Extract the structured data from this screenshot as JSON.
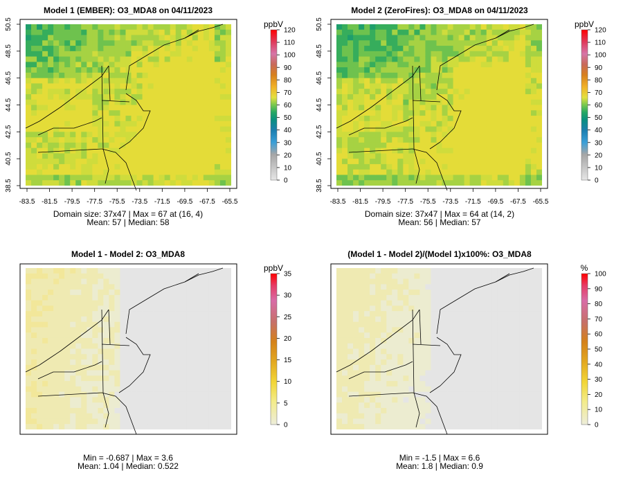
{
  "chart_data": [
    {
      "type": "heatmap",
      "title": "Model 1 (EMBER): O3_MDA8 on 04/11/2023",
      "x_ticks": [
        "-83.5",
        "-81.5",
        "-79.5",
        "-77.5",
        "-75.5",
        "-73.5",
        "-71.5",
        "-69.5",
        "-67.5",
        "-65.5"
      ],
      "y_ticks": [
        "38.5",
        "40.5",
        "42.5",
        "44.5",
        "46.5",
        "48.5",
        "50.5"
      ],
      "xlim": [
        -83.5,
        -65.5
      ],
      "ylim": [
        38.5,
        50.5
      ],
      "colorbar": {
        "unit": "ppbV",
        "ticks": [
          "0",
          "10",
          "20",
          "30",
          "40",
          "50",
          "60",
          "70",
          "80",
          "90",
          "100",
          "110",
          "120"
        ],
        "range": [
          0,
          120
        ]
      },
      "stats": {
        "line1": "Domain size: 37x47 | Max = 67 at (16, 4)",
        "line2": "Mean: 57 |  Median: 58"
      },
      "grid": {
        "cols": 37,
        "rows": 47,
        "max": 67,
        "mean": 57,
        "median": 58
      }
    },
    {
      "type": "heatmap",
      "title": "Model 2 (ZeroFires): O3_MDA8 on 04/11/2023",
      "x_ticks": [
        "-83.5",
        "-81.5",
        "-79.5",
        "-77.5",
        "-75.5",
        "-73.5",
        "-71.5",
        "-69.5",
        "-67.5",
        "-65.5"
      ],
      "y_ticks": [
        "38.5",
        "40.5",
        "42.5",
        "44.5",
        "46.5",
        "48.5",
        "50.5"
      ],
      "xlim": [
        -83.5,
        -65.5
      ],
      "ylim": [
        38.5,
        50.5
      ],
      "colorbar": {
        "unit": "ppbV",
        "ticks": [
          "0",
          "10",
          "20",
          "30",
          "40",
          "50",
          "60",
          "70",
          "80",
          "90",
          "100",
          "110",
          "120"
        ],
        "range": [
          0,
          120
        ]
      },
      "stats": {
        "line1": "Domain size: 37x47 | Max = 64 at (14, 2)",
        "line2": "Mean: 56 |  Median: 57"
      },
      "grid": {
        "cols": 37,
        "rows": 47,
        "max": 64,
        "mean": 56,
        "median": 57
      }
    },
    {
      "type": "heatmap",
      "title": "Model 1 - Model 2: O3_MDA8",
      "colorbar": {
        "unit": "ppbV",
        "ticks": [
          "0",
          "5",
          "10",
          "15",
          "20",
          "25",
          "30",
          "35"
        ],
        "range": [
          0,
          35
        ]
      },
      "stats": {
        "line1": "Min = -0.687 | Max = 3.6",
        "line2": "Mean: 1.04 |  Median: 0.522"
      },
      "grid": {
        "min": -0.687,
        "max": 3.6,
        "mean": 1.04,
        "median": 0.522
      }
    },
    {
      "type": "heatmap",
      "title": "(Model 1 - Model 2)/(Model 1)x100%: O3_MDA8",
      "colorbar": {
        "unit": "%",
        "ticks": [
          "0",
          "10",
          "20",
          "30",
          "40",
          "50",
          "60",
          "70",
          "80",
          "90",
          "100"
        ],
        "range": [
          0,
          100
        ]
      },
      "stats": {
        "line1": "Min = -1.5 | Max = 6.6",
        "line2": "Mean: 1.8 |  Median: 0.9"
      },
      "grid": {
        "min": -1.5,
        "max": 6.6,
        "mean": 1.8,
        "median": 0.9
      }
    }
  ]
}
